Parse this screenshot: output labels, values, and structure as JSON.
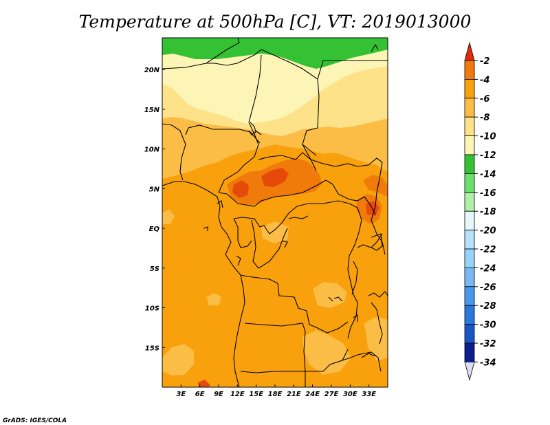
{
  "title": "Temperature at 500hPa [C], VT: 2019013000",
  "credit": "GrADS: IGES/COLA",
  "map": {
    "lon_range": [
      0,
      36
    ],
    "lat_range": [
      -20,
      24
    ],
    "projection": "latlon",
    "lon_ticks": [
      {
        "value": 3,
        "label": "3E"
      },
      {
        "value": 6,
        "label": "6E"
      },
      {
        "value": 9,
        "label": "9E"
      },
      {
        "value": 12,
        "label": "12E"
      },
      {
        "value": 15,
        "label": "15E"
      },
      {
        "value": 18,
        "label": "18E"
      },
      {
        "value": 21,
        "label": "21E"
      },
      {
        "value": 24,
        "label": "24E"
      },
      {
        "value": 27,
        "label": "27E"
      },
      {
        "value": 30,
        "label": "30E"
      },
      {
        "value": 33,
        "label": "33E"
      }
    ],
    "lat_ticks": [
      {
        "value": 20,
        "label": "20N"
      },
      {
        "value": 15,
        "label": "15N"
      },
      {
        "value": 10,
        "label": "10N"
      },
      {
        "value": 5,
        "label": "5N"
      },
      {
        "value": 0,
        "label": "EQ"
      },
      {
        "value": -5,
        "label": "5S"
      },
      {
        "value": -10,
        "label": "10S"
      },
      {
        "value": -15,
        "label": "15S"
      }
    ]
  },
  "colorbar": {
    "levels": [
      {
        "label": "-2",
        "color": "#e64a0a"
      },
      {
        "label": "-4",
        "color": "#f07a0a"
      },
      {
        "label": "-6",
        "color": "#f8a10c"
      },
      {
        "label": "-8",
        "color": "#fbbd45"
      },
      {
        "label": "-10",
        "color": "#fde28a"
      },
      {
        "label": "-12",
        "color": "#fdf5b5"
      },
      {
        "label": "-14",
        "color": "#34c234"
      },
      {
        "label": "-16",
        "color": "#6bdf6b"
      },
      {
        "label": "-18",
        "color": "#aff1a8"
      },
      {
        "label": "-20",
        "color": "#e4f8f8"
      },
      {
        "label": "-22",
        "color": "#b5e1fa"
      },
      {
        "label": "-24",
        "color": "#96d2fa"
      },
      {
        "label": "-26",
        "color": "#78b9f2"
      },
      {
        "label": "-28",
        "color": "#4a97ed"
      },
      {
        "label": "-30",
        "color": "#2a78dc"
      },
      {
        "label": "-32",
        "color": "#1a55c6"
      },
      {
        "label": "-34",
        "color": "#0c1e8c"
      }
    ],
    "top_arrow_color": "#e02a08",
    "bottom_arrow_color": "#dcdcf5"
  },
  "fields": {
    "band_-14": "#34c234",
    "band_-12": "#fdf5b5",
    "band_-10": "#fde28a",
    "band_-8": "#fbbd45",
    "band_-6": "#f8a10c",
    "band_-4": "#f07a0a",
    "band_-2": "#e64a0a"
  }
}
